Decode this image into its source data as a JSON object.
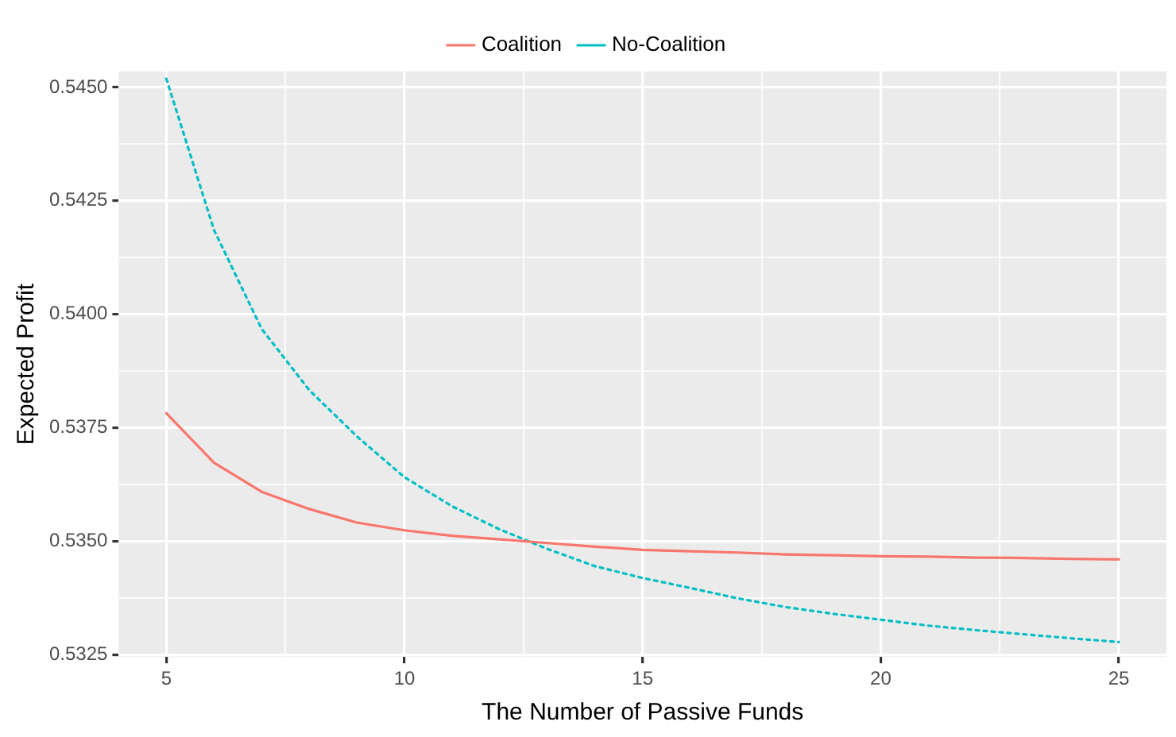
{
  "chart_data": {
    "type": "line",
    "xlabel": "The Number of Passive Funds",
    "ylabel": "Expected Profit",
    "x": [
      5,
      6,
      7,
      8,
      9,
      10,
      11,
      12,
      13,
      14,
      15,
      16,
      17,
      18,
      19,
      20,
      21,
      22,
      23,
      24,
      25
    ],
    "series": [
      {
        "name": "Coalition",
        "color": "#f8766d",
        "line_style": "solid",
        "values": [
          0.53782,
          0.53673,
          0.53609,
          0.53571,
          0.53541,
          0.53524,
          0.53512,
          0.53504,
          0.53496,
          0.53488,
          0.53481,
          0.53478,
          0.53475,
          0.53471,
          0.53469,
          0.53467,
          0.53466,
          0.53464,
          0.53463,
          0.53461,
          0.5346
        ]
      },
      {
        "name": "No-Coalition",
        "color": "#00bfc4",
        "line_style": "dotted",
        "values": [
          0.54519,
          0.54186,
          0.53968,
          0.53833,
          0.53731,
          0.53641,
          0.53577,
          0.53526,
          0.53483,
          0.53445,
          0.53419,
          0.53397,
          0.53374,
          0.53355,
          0.5334,
          0.53327,
          0.53314,
          0.53304,
          0.53295,
          0.53286,
          0.53278
        ]
      }
    ],
    "xlim": [
      4,
      26
    ],
    "xticks": [
      5,
      {
        "value": 7.5,
        "label": null
      },
      10,
      {
        "value": 12.5,
        "label": null
      },
      15,
      {
        "value": 17.5,
        "label": null
      },
      20,
      {
        "value": 22.5,
        "label": null
      },
      25
    ],
    "ylim": [
      0.53245,
      0.54535
    ],
    "yticks": [
      {
        "value": 0.5325,
        "label": "0.5325"
      },
      {
        "value": 0.53375,
        "label": null
      },
      {
        "value": 0.535,
        "label": "0.5350"
      },
      {
        "value": 0.53625,
        "label": null
      },
      {
        "value": 0.5375,
        "label": "0.5375"
      },
      {
        "value": 0.53875,
        "label": null
      },
      {
        "value": 0.54,
        "label": "0.5400"
      },
      {
        "value": 0.54125,
        "label": null
      },
      {
        "value": 0.5425,
        "label": "0.5425"
      },
      {
        "value": 0.54375,
        "label": null
      },
      {
        "value": 0.545,
        "label": "0.5450"
      }
    ],
    "grid": true,
    "legend": "top",
    "marker": "none"
  }
}
